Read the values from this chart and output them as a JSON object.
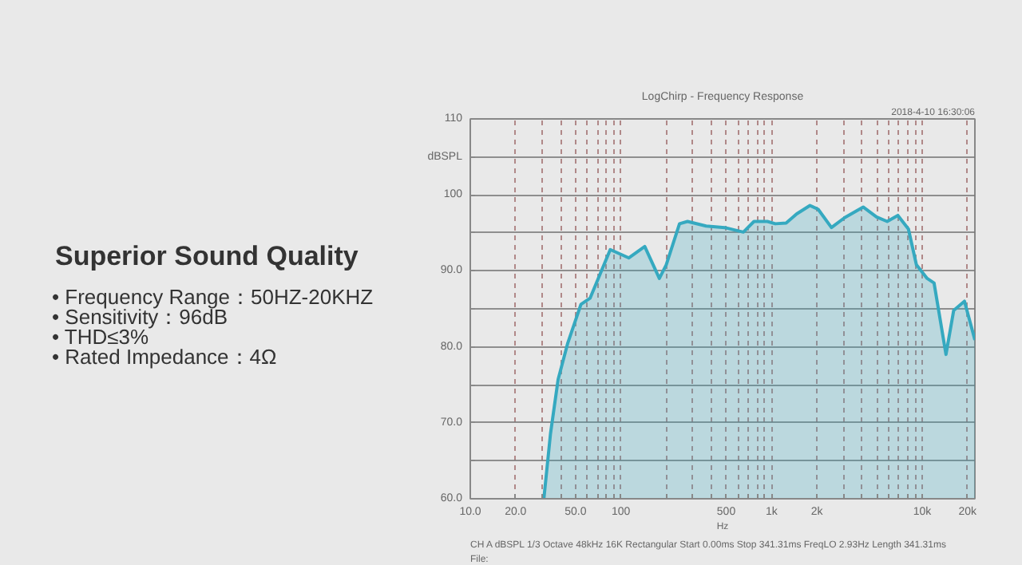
{
  "chart_data": [
    {
      "type": "other",
      "title": "Superior Sound Quality",
      "annotations": [
        "• Frequency Range：50HZ-20KHZ",
        "• Sensitivity：96dB",
        "• THD≤3%",
        "• Rated Impedance：4Ω"
      ]
    },
    {
      "type": "area",
      "title": "LogChirp - Frequency Response",
      "log": "x",
      "grid": true,
      "xlabel": "Hz",
      "annotations": [
        "2018-4-10 16:30:06",
        "CH A   dBSPL   1/3 Octave   48kHz   16K   Rectangular   Start 0.00ms   Stop 341.31ms   FreqLO 2.93Hz   Length 341.31ms",
        "File:"
      ],
      "xlim": [
        10,
        22400
      ],
      "xticks": [
        {
          "value": 10,
          "label": "10.0"
        },
        {
          "value": 20,
          "label": "20.0"
        },
        {
          "value": 30,
          "label": null
        },
        {
          "value": 40,
          "label": null
        },
        {
          "value": 50,
          "label": "50.0"
        },
        {
          "value": 60,
          "label": null
        },
        {
          "value": 70,
          "label": null
        },
        {
          "value": 80,
          "label": null
        },
        {
          "value": 90,
          "label": null
        },
        100,
        {
          "value": 200,
          "label": null
        },
        {
          "value": 300,
          "label": null
        },
        {
          "value": 400,
          "label": null
        },
        500,
        {
          "value": 600,
          "label": null
        },
        {
          "value": 700,
          "label": null
        },
        {
          "value": 800,
          "label": null
        },
        {
          "value": 900,
          "label": null
        },
        {
          "value": 1000,
          "label": "1k"
        },
        {
          "value": 2000,
          "label": "2k"
        },
        {
          "value": 3000,
          "label": null
        },
        {
          "value": 4000,
          "label": null
        },
        {
          "value": 5000,
          "label": null
        },
        {
          "value": 6000,
          "label": null
        },
        {
          "value": 7000,
          "label": null
        },
        {
          "value": 8000,
          "label": null
        },
        {
          "value": 9000,
          "label": null
        },
        {
          "value": 10000,
          "label": "10k"
        },
        {
          "value": 20000,
          "label": "20k"
        }
      ],
      "ylim": [
        60,
        110
      ],
      "yticks": [
        {
          "value": 60,
          "label": "60.0"
        },
        {
          "value": 65,
          "label": null
        },
        {
          "value": 70,
          "label": "70.0"
        },
        {
          "value": 75,
          "label": null
        },
        {
          "value": 80,
          "label": "80.0"
        },
        {
          "value": 85,
          "label": null
        },
        {
          "value": 90,
          "label": "90.0"
        },
        {
          "value": 95,
          "label": null
        },
        100,
        {
          "value": 105,
          "label": "dBSPL"
        },
        110
      ],
      "series": [
        {
          "color": "#35a9c0",
          "x": [
            30.8,
            34.1,
            38.3,
            44.4,
            54.3,
            62.4,
            85,
            113,
            144,
            180,
            200,
            245,
            277,
            368,
            489,
            650,
            765,
            938,
            1060,
            1250,
            1470,
            1800,
            2040,
            2500,
            3060,
            4060,
            4980,
            5860,
            6900,
            8110,
            9160,
            10800,
            12000,
            14400,
            16200,
            19100,
            22400
          ],
          "values": [
            60,
            68.6,
            75.7,
            80.5,
            85.6,
            86.4,
            92.8,
            91.7,
            93.2,
            89.0,
            90.8,
            96.2,
            96.5,
            95.9,
            95.7,
            95.1,
            96.5,
            96.5,
            96.2,
            96.3,
            97.5,
            98.6,
            98.1,
            95.7,
            97.0,
            98.4,
            97.1,
            96.5,
            97.3,
            95.5,
            90.8,
            89.0,
            88.4,
            79.0,
            84.8,
            86.0,
            80.9
          ]
        }
      ]
    }
  ]
}
